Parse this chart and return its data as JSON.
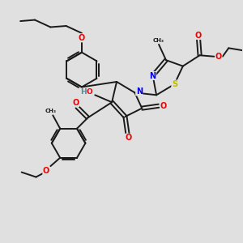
{
  "background_color": "#e0e0e0",
  "bond_color": "#1a1a1a",
  "bond_width": 1.4,
  "atom_colors": {
    "N": "#0000ee",
    "O": "#ee0000",
    "S": "#bbbb00",
    "H": "#558899",
    "C": "#1a1a1a"
  },
  "font_size": 7.0,
  "font_size_small": 5.5
}
